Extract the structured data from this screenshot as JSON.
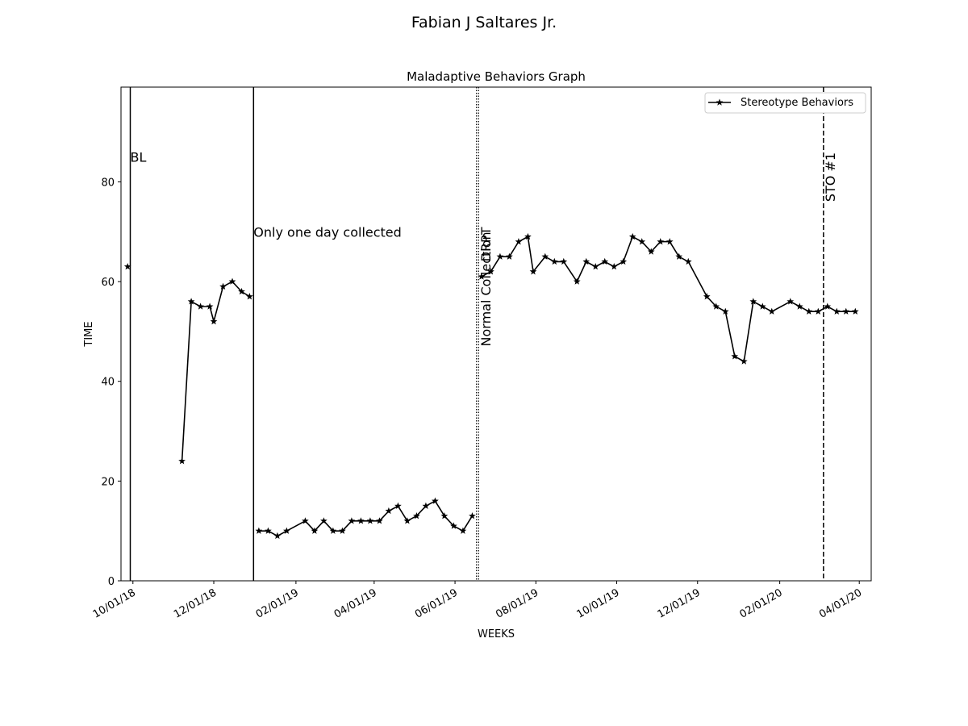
{
  "figure": {
    "suptitle": "Fabian J  Saltares Jr."
  },
  "chart_data": {
    "type": "line",
    "title": "Maladaptive Behaviors Graph",
    "xlabel": "WEEKS",
    "ylabel": "TIME",
    "x_is_date": true,
    "xlim": [
      "2018-09-22",
      "2020-04-10"
    ],
    "ylim": [
      0,
      99
    ],
    "xticks": [
      {
        "date": "2018-10-01",
        "label": "10/01/18"
      },
      {
        "date": "2018-12-01",
        "label": "12/01/18"
      },
      {
        "date": "2019-02-01",
        "label": "02/01/19"
      },
      {
        "date": "2019-04-01",
        "label": "04/01/19"
      },
      {
        "date": "2019-06-01",
        "label": "06/01/19"
      },
      {
        "date": "2019-08-01",
        "label": "08/01/19"
      },
      {
        "date": "2019-10-01",
        "label": "10/01/19"
      },
      {
        "date": "2019-12-01",
        "label": "12/01/19"
      },
      {
        "date": "2020-02-01",
        "label": "02/01/20"
      },
      {
        "date": "2020-04-01",
        "label": "04/01/20"
      }
    ],
    "yticks": [
      0,
      20,
      40,
      60,
      80
    ],
    "grid": false,
    "legend": {
      "position": "upper-right"
    },
    "series": [
      {
        "name": "Stereotype Behaviors",
        "color": "#000000",
        "marker": "star",
        "segments": [
          [
            {
              "x": "2018-09-27",
              "y": 63
            }
          ],
          [
            {
              "x": "2018-11-07",
              "y": 24
            },
            {
              "x": "2018-11-14",
              "y": 56
            },
            {
              "x": "2018-11-21",
              "y": 55
            },
            {
              "x": "2018-11-28",
              "y": 55
            },
            {
              "x": "2018-12-01",
              "y": 52
            },
            {
              "x": "2018-12-08",
              "y": 59
            },
            {
              "x": "2018-12-15",
              "y": 60
            },
            {
              "x": "2018-12-22",
              "y": 58
            },
            {
              "x": "2018-12-28",
              "y": 57
            }
          ],
          [
            {
              "x": "2019-01-04",
              "y": 10
            },
            {
              "x": "2019-01-11",
              "y": 10
            },
            {
              "x": "2019-01-18",
              "y": 9
            },
            {
              "x": "2019-01-25",
              "y": 10
            },
            {
              "x": "2019-02-08",
              "y": 12
            },
            {
              "x": "2019-02-15",
              "y": 10
            },
            {
              "x": "2019-02-22",
              "y": 12
            },
            {
              "x": "2019-03-01",
              "y": 10
            },
            {
              "x": "2019-03-08",
              "y": 10
            },
            {
              "x": "2019-03-15",
              "y": 12
            },
            {
              "x": "2019-03-22",
              "y": 12
            },
            {
              "x": "2019-03-29",
              "y": 12
            },
            {
              "x": "2019-04-05",
              "y": 12
            },
            {
              "x": "2019-04-12",
              "y": 14
            },
            {
              "x": "2019-04-19",
              "y": 15
            },
            {
              "x": "2019-04-26",
              "y": 12
            },
            {
              "x": "2019-05-03",
              "y": 13
            },
            {
              "x": "2019-05-10",
              "y": 15
            },
            {
              "x": "2019-05-17",
              "y": 16
            },
            {
              "x": "2019-05-24",
              "y": 13
            },
            {
              "x": "2019-05-31",
              "y": 11
            },
            {
              "x": "2019-06-07",
              "y": 10
            },
            {
              "x": "2019-06-14",
              "y": 13
            }
          ],
          [
            {
              "x": "2019-06-21",
              "y": 61
            },
            {
              "x": "2019-06-28",
              "y": 62
            },
            {
              "x": "2019-07-05",
              "y": 65
            },
            {
              "x": "2019-07-12",
              "y": 65
            },
            {
              "x": "2019-07-19",
              "y": 68
            },
            {
              "x": "2019-07-26",
              "y": 69
            },
            {
              "x": "2019-07-30",
              "y": 62
            },
            {
              "x": "2019-08-08",
              "y": 65
            },
            {
              "x": "2019-08-15",
              "y": 64
            },
            {
              "x": "2019-08-22",
              "y": 64
            },
            {
              "x": "2019-09-01",
              "y": 60
            },
            {
              "x": "2019-09-08",
              "y": 64
            },
            {
              "x": "2019-09-15",
              "y": 63
            },
            {
              "x": "2019-09-22",
              "y": 64
            },
            {
              "x": "2019-09-29",
              "y": 63
            },
            {
              "x": "2019-10-06",
              "y": 64
            },
            {
              "x": "2019-10-13",
              "y": 69
            },
            {
              "x": "2019-10-20",
              "y": 68
            },
            {
              "x": "2019-10-27",
              "y": 66
            },
            {
              "x": "2019-11-03",
              "y": 68
            },
            {
              "x": "2019-11-10",
              "y": 68
            },
            {
              "x": "2019-11-17",
              "y": 65
            },
            {
              "x": "2019-11-24",
              "y": 64
            },
            {
              "x": "2019-12-08",
              "y": 57
            },
            {
              "x": "2019-12-15",
              "y": 55
            },
            {
              "x": "2019-12-22",
              "y": 54
            },
            {
              "x": "2019-12-29",
              "y": 45
            },
            {
              "x": "2020-01-05",
              "y": 44
            },
            {
              "x": "2020-01-12",
              "y": 56
            },
            {
              "x": "2020-01-19",
              "y": 55
            },
            {
              "x": "2020-01-26",
              "y": 54
            },
            {
              "x": "2020-02-09",
              "y": 56
            },
            {
              "x": "2020-02-16",
              "y": 55
            },
            {
              "x": "2020-02-23",
              "y": 54
            },
            {
              "x": "2020-03-01",
              "y": 54
            },
            {
              "x": "2020-03-08",
              "y": 55
            },
            {
              "x": "2020-03-15",
              "y": 54
            },
            {
              "x": "2020-03-22",
              "y": 54
            },
            {
              "x": "2020-03-29",
              "y": 54
            }
          ]
        ]
      }
    ],
    "phase_lines": [
      {
        "date": "2018-09-29",
        "style": "solid"
      },
      {
        "date": "2018-12-31",
        "style": "solid"
      },
      {
        "date": "2019-06-18",
        "style": "dotted-double"
      },
      {
        "date": "2020-03-05",
        "style": "dashed"
      }
    ],
    "annotations": [
      {
        "text": "BL",
        "x": "2018-09-29",
        "y": 84,
        "rotation": 0
      },
      {
        "text": "Only one day collected",
        "x": "2018-12-31",
        "y": 69,
        "rotation": 0
      },
      {
        "text": "Normal Collection",
        "x": "2019-06-19",
        "y": 47,
        "rotation": -90
      },
      {
        "text": "DRPT",
        "x": "2019-06-19",
        "y": 64,
        "rotation": -90
      },
      {
        "text": "STO #1",
        "x": "2020-03-05",
        "y": 76,
        "rotation": -90
      }
    ]
  }
}
